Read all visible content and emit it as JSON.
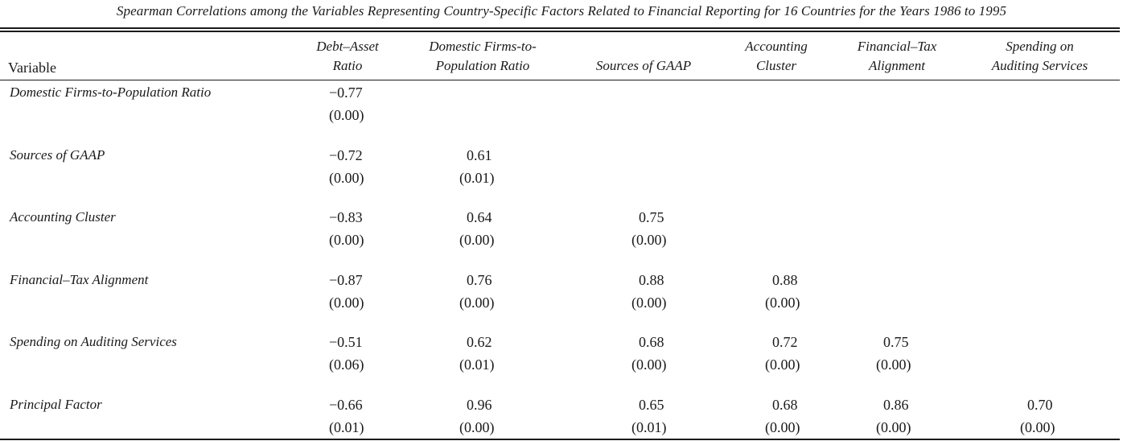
{
  "caption": "Spearman Correlations among the Variables Representing Country-Specific Factors Related to Financial Reporting for 16 Countries for the Years 1986 to 1995",
  "header": {
    "variable": "Variable",
    "columns": [
      {
        "line1": "Debt–Asset",
        "line2": "Ratio"
      },
      {
        "line1": "Domestic Firms-to-",
        "line2": "Population Ratio"
      },
      {
        "line1": "",
        "line2": "Sources of GAAP"
      },
      {
        "line1": "Accounting",
        "line2": "Cluster"
      },
      {
        "line1": "Financial–Tax",
        "line2": "Alignment"
      },
      {
        "line1": "Spending on",
        "line2": "Auditing Services"
      }
    ]
  },
  "rows": [
    {
      "label": "Domestic Firms-to-Population Ratio",
      "cells": [
        {
          "coef": "−0.77",
          "p": "(0.00)"
        }
      ]
    },
    {
      "label": "Sources of GAAP",
      "cells": [
        {
          "coef": "−0.72",
          "p": "(0.00)"
        },
        {
          "coef": "0.61",
          "p": "(0.01)"
        }
      ]
    },
    {
      "label": "Accounting Cluster",
      "cells": [
        {
          "coef": "−0.83",
          "p": "(0.00)"
        },
        {
          "coef": "0.64",
          "p": "(0.00)"
        },
        {
          "coef": "0.75",
          "p": "(0.00)"
        }
      ]
    },
    {
      "label": "Financial–Tax Alignment",
      "cells": [
        {
          "coef": "−0.87",
          "p": "(0.00)"
        },
        {
          "coef": "0.76",
          "p": "(0.00)"
        },
        {
          "coef": "0.88",
          "p": "(0.00)"
        },
        {
          "coef": "0.88",
          "p": "(0.00)"
        }
      ]
    },
    {
      "label": "Spending on Auditing Services",
      "cells": [
        {
          "coef": "−0.51",
          "p": "(0.06)"
        },
        {
          "coef": "0.62",
          "p": "(0.01)"
        },
        {
          "coef": "0.68",
          "p": "(0.00)"
        },
        {
          "coef": "0.72",
          "p": "(0.00)"
        },
        {
          "coef": "0.75",
          "p": "(0.00)"
        }
      ]
    },
    {
      "label": "Principal Factor",
      "cells": [
        {
          "coef": "−0.66",
          "p": "(0.01)"
        },
        {
          "coef": "0.96",
          "p": "(0.00)"
        },
        {
          "coef": "0.65",
          "p": "(0.01)"
        },
        {
          "coef": "0.68",
          "p": "(0.00)"
        },
        {
          "coef": "0.86",
          "p": "(0.00)"
        },
        {
          "coef": "0.70",
          "p": "(0.00)"
        }
      ]
    }
  ]
}
